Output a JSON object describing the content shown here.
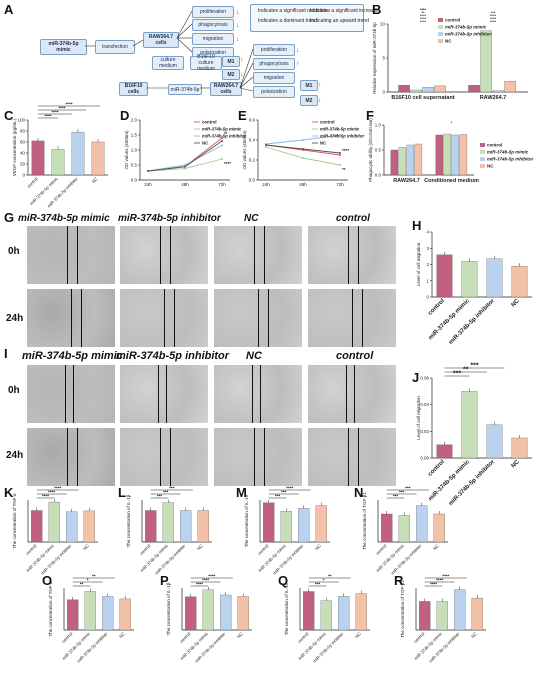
{
  "panel_letters": {
    "A": "A",
    "B": "B",
    "C": "C",
    "D": "D",
    "E": "E",
    "F": "F",
    "G": "G",
    "H": "H",
    "I": "I",
    "J": "J",
    "K": "K",
    "L": "L",
    "M": "M",
    "N": "N",
    "O": "O",
    "P": "P",
    "Q": "Q",
    "R": "R"
  },
  "colors": {
    "control": "#c2607f",
    "mimic": "#c7dfb8",
    "inhibitor": "#b9d3ee",
    "nc": "#f2c1a8",
    "line_control": "#d9546b",
    "line_mimic": "#9acf8a",
    "line_inhibitor": "#8fb6e3",
    "line_nc": "#555555"
  },
  "legend": [
    "control",
    "miR-374b-5p mimic",
    "miR-374b-5p inhibitor",
    "NC"
  ],
  "diagram": {
    "mimic": "miR-374b-5p mimic",
    "transfection": "transfection",
    "raw_cells": "RAW264.7 cells",
    "b16_cells": "B16F10 cells",
    "raw2": "RAW264.7 cells",
    "proliferation": "proliferation",
    "phagocytosis": "phagocytosis",
    "migration": "migration",
    "polarization": "polarization",
    "m1": "M1",
    "m2": "M2",
    "culture_medium": "culture medium",
    "b16_culture_medium": "B16F10 culture medium",
    "prolif2": "proliferation",
    "phago2": "phagocytosis",
    "migr2": "migration",
    "polar2": "polarization",
    "m1b": "M1",
    "m2b": "M2",
    "mimic2": "miR-374b-5p",
    "legend_dec": "Indicates a significant reduction",
    "legend_inc": "Indicates a significant increase",
    "legend_dom": "Indicates a dominant trend",
    "legend_inf": "Indicating an upward trend"
  },
  "micro": {
    "G_cols": [
      "miR-374b-5p mimic",
      "miR-374b-5p inhibitor",
      "NC",
      "control"
    ],
    "I_cols": [
      "miR-374b-5p mimic",
      "miR-374b-5p inhibitor",
      "NC",
      "control"
    ],
    "rows": [
      "0h",
      "24h"
    ]
  },
  "chart_data": [
    {
      "id": "B",
      "type": "bar",
      "ylabel": "Relative expression of miR-374b-5p",
      "categories": [
        "B16F10 cell supernatant",
        "RAW264.7"
      ],
      "series": [
        {
          "name": "control",
          "values": [
            1.0,
            1.0
          ]
        },
        {
          "name": "miR-374b-5p mimic",
          "values": [
            0.3,
            9.0
          ]
        },
        {
          "name": "miR-374b-5p inhibitor",
          "values": [
            0.7,
            0.2
          ]
        },
        {
          "name": "NC",
          "values": [
            0.9,
            1.6
          ]
        }
      ],
      "ylim": [
        0,
        10
      ],
      "yticks": [
        "0",
        "5",
        "10"
      ],
      "sig": [
        "****",
        "****",
        "****",
        "***",
        "****",
        "****",
        "****",
        "****",
        "**",
        "**"
      ]
    },
    {
      "id": "C",
      "type": "bar",
      "ylabel": "VEGF concentration (pg/mL)",
      "categories": [
        "control",
        "miR-374b-5p mimic",
        "miR-374b-5p inhibitor",
        "NC"
      ],
      "values": [
        62,
        47,
        78,
        60
      ],
      "ylim": [
        0,
        100
      ],
      "yticks": [
        "0",
        "20",
        "40",
        "60",
        "80",
        "100"
      ],
      "sig": [
        "****",
        "****",
        "****",
        "****"
      ]
    },
    {
      "id": "D",
      "type": "line",
      "ylabel": "OD values (450nm)",
      "x": [
        "24h",
        "48h",
        "72h"
      ],
      "series": [
        {
          "name": "control",
          "values": [
            0.3,
            0.45,
            1.4
          ]
        },
        {
          "name": "miR-374b-5p mimic",
          "values": [
            0.3,
            0.38,
            0.7
          ]
        },
        {
          "name": "miR-374b-5p inhibitor",
          "values": [
            0.3,
            0.5,
            1.15
          ]
        },
        {
          "name": "NC",
          "values": [
            0.3,
            0.44,
            1.3
          ]
        }
      ],
      "ylim": [
        0,
        2.0
      ],
      "yticks": [
        "0.0",
        "0.5",
        "1.0",
        "1.5",
        "2.0"
      ],
      "sig": [
        "**",
        "****"
      ]
    },
    {
      "id": "E",
      "type": "line",
      "ylabel": "OD values (450nm)",
      "x": [
        "24h",
        "48h",
        "72h"
      ],
      "series": [
        {
          "name": "control",
          "values": [
            0.35,
            0.3,
            0.25
          ]
        },
        {
          "name": "miR-374b-5p mimic",
          "values": [
            0.33,
            0.22,
            0.15
          ]
        },
        {
          "name": "miR-374b-5p inhibitor",
          "values": [
            0.36,
            0.4,
            0.45
          ]
        },
        {
          "name": "NC",
          "values": [
            0.35,
            0.31,
            0.27
          ]
        }
      ],
      "ylim": [
        0,
        0.6
      ],
      "yticks": [
        "0.0",
        "0.2",
        "0.4",
        "0.6"
      ],
      "sig": [
        "****",
        "**"
      ]
    },
    {
      "id": "F",
      "type": "bar",
      "ylabel": "Phagocytic ability (OD=540 nm)",
      "categories": [
        "RAW264.7",
        "Conditioned medium"
      ],
      "series": [
        {
          "name": "control",
          "values": [
            0.5,
            0.8
          ]
        },
        {
          "name": "miR-374b-5p mimic",
          "values": [
            0.55,
            0.82
          ]
        },
        {
          "name": "miR-374b-5p inhibitor",
          "values": [
            0.6,
            0.8
          ]
        },
        {
          "name": "NC",
          "values": [
            0.62,
            0.81
          ]
        }
      ],
      "ylim": [
        0,
        1.0
      ],
      "yticks": [
        "0.0",
        "0.5",
        "1.0"
      ],
      "sig": [
        "*"
      ]
    },
    {
      "id": "H",
      "type": "bar",
      "ylabel": "Level of cell migration",
      "categories": [
        "control",
        "miR-374b-5p mimic",
        "miR-374b-5p inhibitor",
        "NC"
      ],
      "values": [
        2.6,
        2.2,
        2.35,
        1.9
      ],
      "ylim": [
        0,
        4
      ],
      "yticks": [
        "0",
        "1",
        "2",
        "3",
        "4"
      ]
    },
    {
      "id": "J",
      "type": "bar",
      "ylabel": "Level of cell migration",
      "categories": [
        "control",
        "miR-374b-5p mimic",
        "miR-374b-5p inhibitor",
        "NC"
      ],
      "values": [
        0.01,
        0.05,
        0.025,
        0.015
      ],
      "ylim": [
        0,
        0.06
      ],
      "yticks": [
        "0.00",
        "0.02",
        "0.04",
        "0.06"
      ],
      "sig": [
        "***",
        "**",
        "***"
      ]
    },
    {
      "id": "K",
      "type": "bar",
      "ylabel": "The concentration of TNF-α",
      "categories": [
        "control",
        "miR-374b-5p mimic",
        "miR-374b-5p inhibitor",
        "NC"
      ],
      "values": [
        75,
        95,
        72,
        74
      ],
      "ylim": [
        0,
        100
      ],
      "sig": [
        "****",
        "****",
        "****"
      ]
    },
    {
      "id": "L",
      "type": "bar",
      "ylabel": "The concentration of IL-1β",
      "categories": [
        "control",
        "miR-374b-5p mimic",
        "miR-374b-5p inhibitor",
        "NC"
      ],
      "values": [
        12,
        15,
        12,
        12
      ],
      "ylim": [
        0,
        16
      ],
      "sig": [
        "***",
        "***",
        "***"
      ]
    },
    {
      "id": "M",
      "type": "bar",
      "ylabel": "The concentration of IL-10",
      "categories": [
        "control",
        "miR-374b-5p mimic",
        "miR-374b-5p inhibitor",
        "NC"
      ],
      "values": [
        28,
        22,
        24,
        26
      ],
      "ylim": [
        0,
        30
      ],
      "sig": [
        "***",
        "***",
        "****"
      ]
    },
    {
      "id": "N",
      "type": "bar",
      "ylabel": "The concentration of TGF-β1",
      "categories": [
        "control",
        "miR-374b-5p mimic",
        "miR-374b-5p inhibitor",
        "NC"
      ],
      "values": [
        20,
        19,
        26,
        20
      ],
      "ylim": [
        0,
        30
      ],
      "sig": [
        "***",
        "***",
        "***"
      ]
    },
    {
      "id": "O",
      "type": "bar",
      "ylabel": "The concentration of TNF-α",
      "categories": [
        "control",
        "miR-374b-5p mimic",
        "miR-374b-5p inhibitor",
        "NC"
      ],
      "values": [
        72,
        92,
        80,
        74
      ],
      "ylim": [
        0,
        100
      ],
      "sig": [
        "**",
        "*",
        "**"
      ]
    },
    {
      "id": "P",
      "type": "bar",
      "ylabel": "The concentration of IL-1β",
      "categories": [
        "control",
        "miR-374b-5p mimic",
        "miR-374b-5p inhibitor",
        "NC"
      ],
      "values": [
        9.5,
        11.5,
        10,
        9.6
      ],
      "ylim": [
        0,
        12
      ],
      "sig": [
        "****",
        "****",
        "****"
      ]
    },
    {
      "id": "Q",
      "type": "bar",
      "ylabel": "The concentration of IL-10",
      "categories": [
        "control",
        "miR-374b-5p mimic",
        "miR-374b-5p inhibitor",
        "NC"
      ],
      "values": [
        55,
        42,
        48,
        52
      ],
      "ylim": [
        0,
        60
      ],
      "sig": [
        "***",
        "*",
        "**"
      ]
    },
    {
      "id": "R",
      "type": "bar",
      "ylabel": "The concentration of TGF-β1",
      "categories": [
        "control",
        "miR-374b-5p mimic",
        "miR-374b-5p inhibitor",
        "NC"
      ],
      "values": [
        17,
        17,
        24,
        19
      ],
      "ylim": [
        0,
        25
      ],
      "sig": [
        "****",
        "****",
        "****"
      ]
    }
  ]
}
